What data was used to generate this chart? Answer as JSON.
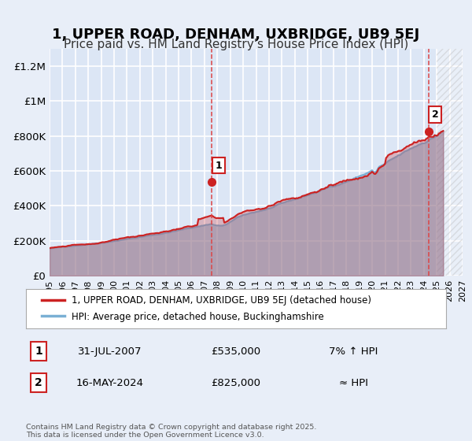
{
  "title": "1, UPPER ROAD, DENHAM, UXBRIDGE, UB9 5EJ",
  "subtitle": "Price paid vs. HM Land Registry's House Price Index (HPI)",
  "title_fontsize": 13,
  "subtitle_fontsize": 11,
  "xlim": [
    1995,
    2027
  ],
  "ylim": [
    0,
    1300000
  ],
  "yticks": [
    0,
    200000,
    400000,
    600000,
    800000,
    1000000,
    1200000
  ],
  "ytick_labels": [
    "£0",
    "£200K",
    "£400K",
    "£600K",
    "£800K",
    "£1M",
    "£1.2M"
  ],
  "xticks": [
    1995,
    1996,
    1997,
    1998,
    1999,
    2000,
    2001,
    2002,
    2003,
    2004,
    2005,
    2006,
    2007,
    2008,
    2009,
    2010,
    2011,
    2012,
    2013,
    2014,
    2015,
    2016,
    2017,
    2018,
    2019,
    2020,
    2021,
    2022,
    2023,
    2024,
    2025,
    2026,
    2027
  ],
  "bg_color": "#e8eef8",
  "plot_bg_color": "#dce6f5",
  "grid_color": "#ffffff",
  "hpi_color": "#7ab0d4",
  "price_color": "#cc2222",
  "sale1_date": 2007.58,
  "sale1_price": 535000,
  "sale1_label": "1",
  "sale2_date": 2024.37,
  "sale2_price": 825000,
  "sale2_label": "2",
  "vline_color": "#dd4444",
  "legend_label1": "1, UPPER ROAD, DENHAM, UXBRIDGE, UB9 5EJ (detached house)",
  "legend_label2": "HPI: Average price, detached house, Buckinghamshire",
  "info1_num": "1",
  "info1_date": "31-JUL-2007",
  "info1_price": "£535,000",
  "info1_hpi": "7% ↑ HPI",
  "info2_num": "2",
  "info2_date": "16-MAY-2024",
  "info2_price": "£825,000",
  "info2_hpi": "≈ HPI",
  "footer": "Contains HM Land Registry data © Crown copyright and database right 2025.\nThis data is licensed under the Open Government Licence v3.0.",
  "shaded_right_x": 2025.0
}
